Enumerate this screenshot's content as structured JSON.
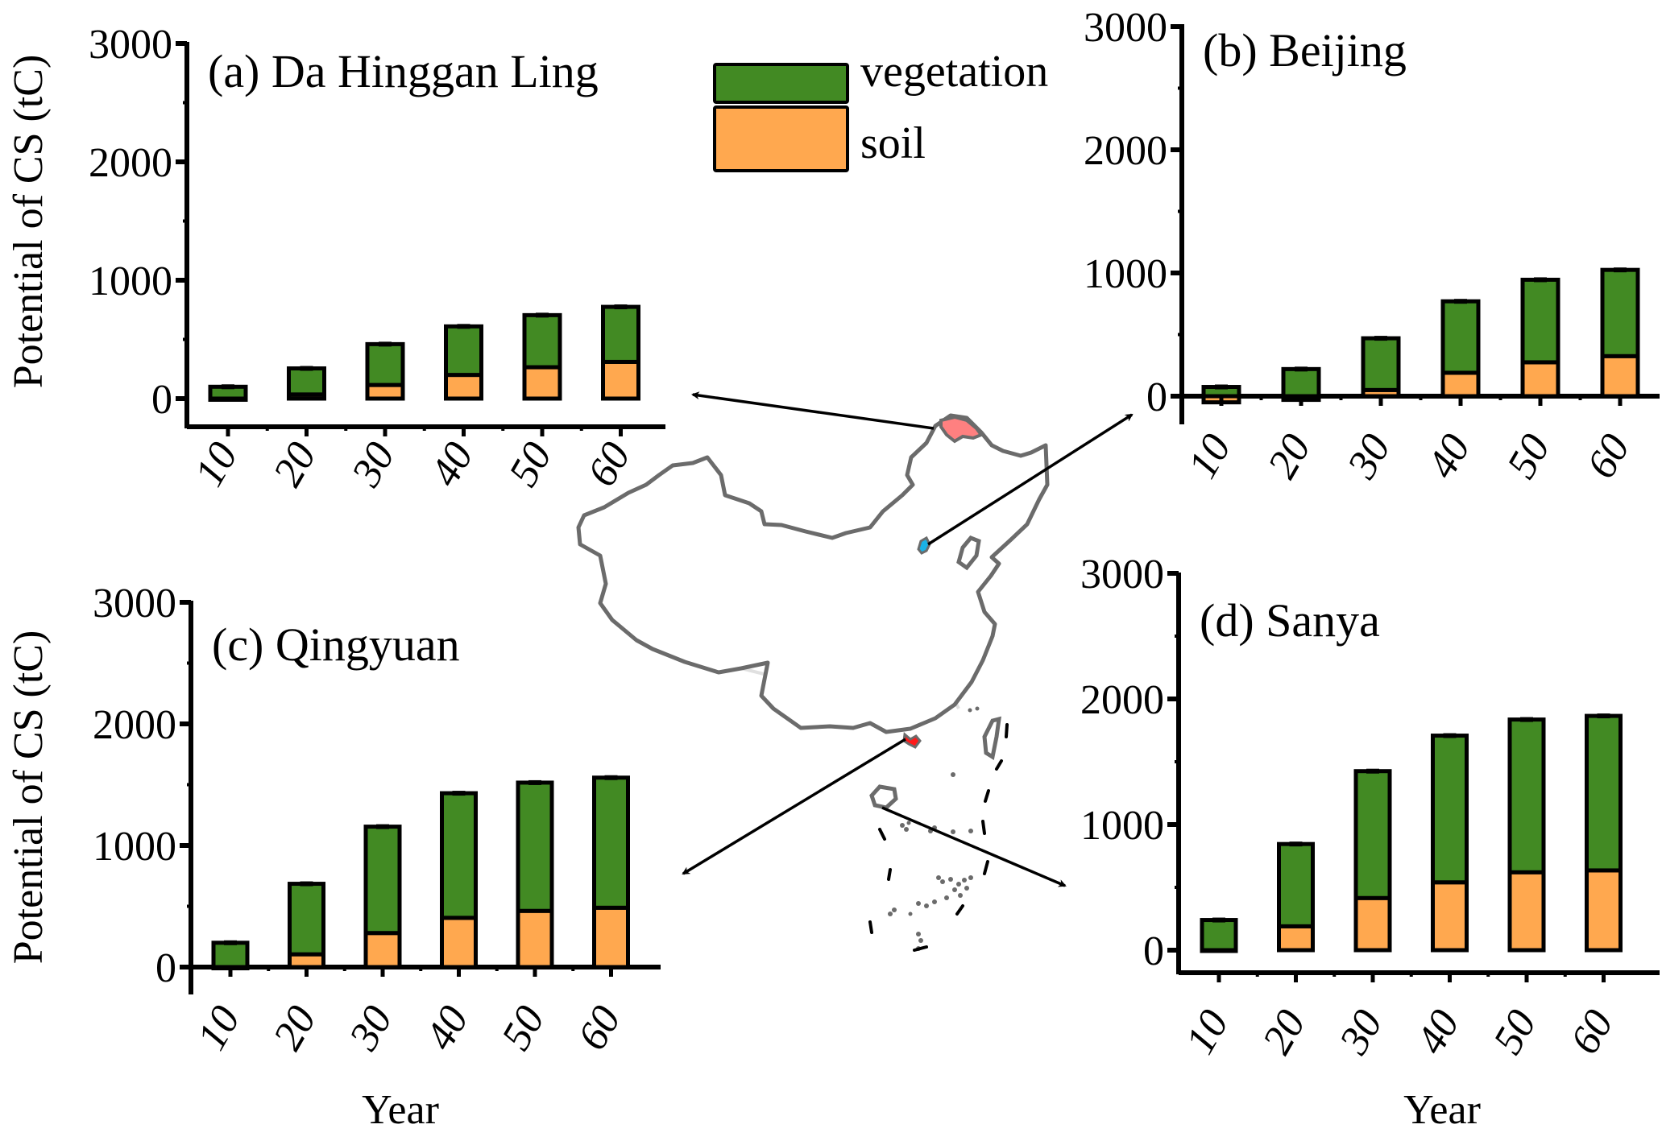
{
  "colors": {
    "vegetation": "#428a23",
    "soil": "#ffa84f",
    "outline": "#000000",
    "map_border": "#6b6b6b",
    "map_province": "#e0e0e0",
    "highlight_da_hinggan_ling": "#ff8080",
    "highlight_beijing": "#1ab2e6",
    "highlight_qingyuan": "#ff1a1a"
  },
  "legend": {
    "items": [
      {
        "label": "vegetation",
        "key": "vegetation"
      },
      {
        "label": "soil",
        "key": "soil"
      }
    ]
  },
  "chart_data": [
    {
      "type": "bar",
      "stacked": true,
      "title": "(a) Da Hinggan Ling",
      "xlabel": "",
      "ylabel": "Potential of CS (tC)",
      "categories": [
        "10",
        "20",
        "30",
        "40",
        "50",
        "60"
      ],
      "yticks": [
        "0",
        "1000",
        "2000",
        "3000"
      ],
      "ylim": [
        -200,
        3000
      ],
      "series": [
        {
          "name": "soil",
          "values": [
            -10,
            35,
            115,
            200,
            265,
            310
          ]
        },
        {
          "name": "vegetation",
          "values": [
            110,
            220,
            345,
            410,
            440,
            465
          ]
        }
      ],
      "totals": [
        100,
        255,
        460,
        610,
        705,
        775
      ],
      "error_bars": true
    },
    {
      "type": "bar",
      "stacked": true,
      "title": "(b) Beijing",
      "xlabel": "",
      "ylabel": "",
      "categories": [
        "10",
        "20",
        "30",
        "40",
        "50",
        "60"
      ],
      "yticks": [
        "0",
        "1000",
        "2000",
        "3000"
      ],
      "ylim": [
        -200,
        3000
      ],
      "series": [
        {
          "name": "soil",
          "values": [
            -50,
            -30,
            50,
            190,
            275,
            325
          ]
        },
        {
          "name": "vegetation",
          "values": [
            125,
            250,
            420,
            580,
            670,
            700
          ]
        }
      ],
      "totals": [
        75,
        220,
        470,
        770,
        945,
        1025
      ],
      "error_bars": true
    },
    {
      "type": "bar",
      "stacked": true,
      "title": "(c) Qingyuan",
      "xlabel": "Year",
      "ylabel": "Potential of CS (tC)",
      "categories": [
        "10",
        "20",
        "30",
        "40",
        "50",
        "60"
      ],
      "yticks": [
        "0",
        "1000",
        "2000",
        "3000"
      ],
      "ylim": [
        -200,
        3000
      ],
      "series": [
        {
          "name": "soil",
          "values": [
            -10,
            105,
            280,
            405,
            462,
            488
          ]
        },
        {
          "name": "vegetation",
          "values": [
            210,
            580,
            875,
            1025,
            1055,
            1070
          ]
        }
      ],
      "totals": [
        200,
        685,
        1155,
        1430,
        1517,
        1558
      ],
      "error_bars": true
    },
    {
      "type": "bar",
      "stacked": true,
      "title": "(d) Sanya",
      "xlabel": "Year",
      "ylabel": "",
      "categories": [
        "10",
        "20",
        "30",
        "40",
        "50",
        "60"
      ],
      "yticks": [
        "0",
        "1000",
        "2000",
        "3000"
      ],
      "ylim": [
        -200,
        3000
      ],
      "series": [
        {
          "name": "soil",
          "values": [
            0,
            190,
            415,
            540,
            620,
            635
          ]
        },
        {
          "name": "vegetation",
          "values": [
            240,
            655,
            1010,
            1168,
            1216,
            1230
          ]
        }
      ],
      "totals": [
        240,
        845,
        1425,
        1708,
        1836,
        1865
      ],
      "error_bars": true
    }
  ],
  "map": {
    "description": "Map of China with province boundaries; highlighted study sites linked by arrows to panels",
    "sites": [
      {
        "name": "Da Hinggan Ling",
        "panel": "a"
      },
      {
        "name": "Beijing",
        "panel": "b"
      },
      {
        "name": "Qingyuan",
        "panel": "c"
      },
      {
        "name": "Sanya",
        "panel": "d"
      }
    ]
  }
}
